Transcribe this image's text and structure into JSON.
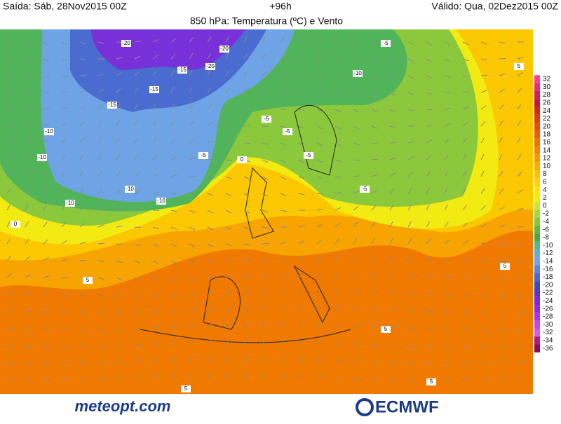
{
  "header": {
    "issued": "Saída: Sáb, 28Nov2015 00Z",
    "lead": "+96h",
    "valid": "Válido: Qua, 02Dez2015 00Z",
    "title": "850 hPa: Temperatura (ºC) e Vento"
  },
  "colorbar": {
    "ticks": [
      32,
      30,
      28,
      26,
      24,
      22,
      20,
      18,
      16,
      14,
      12,
      10,
      8,
      6,
      4,
      2,
      0,
      -2,
      -4,
      -6,
      -8,
      -10,
      -12,
      -14,
      -16,
      -18,
      -20,
      -22,
      -24,
      -26,
      -28,
      -30,
      -32,
      -34,
      -36
    ],
    "colors": [
      "#ff3c9c",
      "#ee2a7a",
      "#dc1a5a",
      "#cc1038",
      "#d42a10",
      "#e03a06",
      "#ea4c04",
      "#f05e02",
      "#f27200",
      "#f68400",
      "#f89800",
      "#faac00",
      "#fbc000",
      "#fdd400",
      "#ffe600",
      "#f0f000",
      "#c8e632",
      "#a4d63c",
      "#80c83c",
      "#5eb83e",
      "#46a84a",
      "#56b890",
      "#5eaed6",
      "#70a2e8",
      "#5c86de",
      "#4868cc",
      "#3e4ab8",
      "#5a34c8",
      "#7828d8",
      "#9428e2",
      "#a834e6",
      "#c446e6",
      "#d85ae6",
      "#b4148c",
      "#8c0a5a"
    ]
  },
  "map_labels": [
    "-20",
    "-20",
    "-15",
    "-15",
    "-10",
    "-10",
    "-10",
    "-5",
    "-5",
    "-5",
    "-10",
    "-5",
    "0",
    "0",
    "5",
    "5",
    "5",
    "5",
    "-5",
    "-10",
    "-15",
    "-20",
    "-10",
    "-5",
    "5",
    "5"
  ],
  "logos": {
    "left": "meteopt.com",
    "right": "ECMWF"
  }
}
